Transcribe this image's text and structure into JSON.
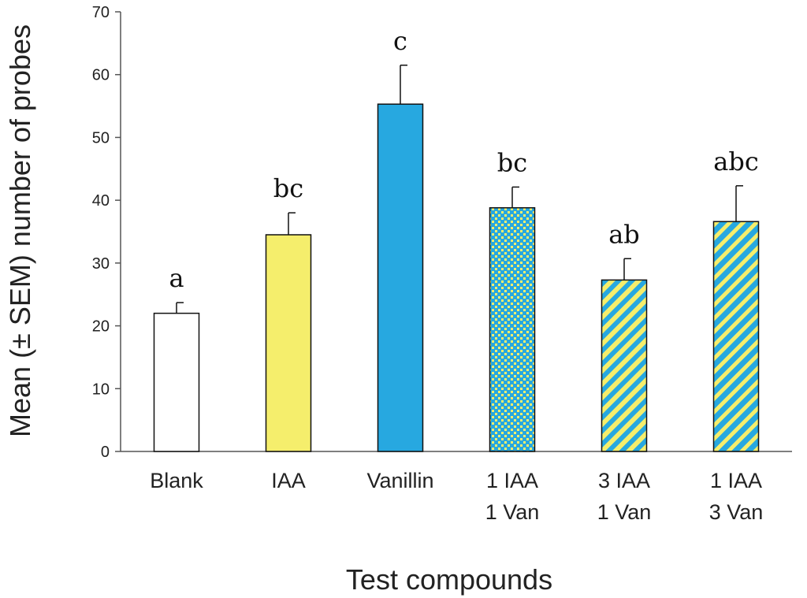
{
  "chart_data": {
    "type": "bar",
    "title": "",
    "xlabel": "Test compounds",
    "ylabel": "Mean (± SEM) number of probes",
    "ylim": [
      0,
      70
    ],
    "yticks": [
      0,
      10,
      20,
      30,
      40,
      50,
      60,
      70
    ],
    "grid": false,
    "categories": [
      {
        "lines": [
          "Blank"
        ]
      },
      {
        "lines": [
          "IAA"
        ]
      },
      {
        "lines": [
          "Vanillin"
        ]
      },
      {
        "lines": [
          "1 IAA",
          "1 Van"
        ]
      },
      {
        "lines": [
          "3 IAA",
          "1 Van"
        ]
      },
      {
        "lines": [
          "1 IAA",
          "3 Van"
        ]
      }
    ],
    "values": [
      22.0,
      34.5,
      55.3,
      38.8,
      27.3,
      36.6
    ],
    "sem": [
      1.7,
      3.5,
      6.2,
      3.3,
      3.4,
      5.7
    ],
    "significance_letters": [
      "a",
      "bc",
      "c",
      "bc",
      "ab",
      "abc"
    ],
    "fills": [
      "white",
      "yellow",
      "blue",
      "dots",
      "stripes",
      "stripes-blue"
    ],
    "colors": {
      "yellow": "#f5ee6c",
      "blue": "#27a8e0",
      "white": "#ffffff",
      "edge": "#111111"
    }
  }
}
